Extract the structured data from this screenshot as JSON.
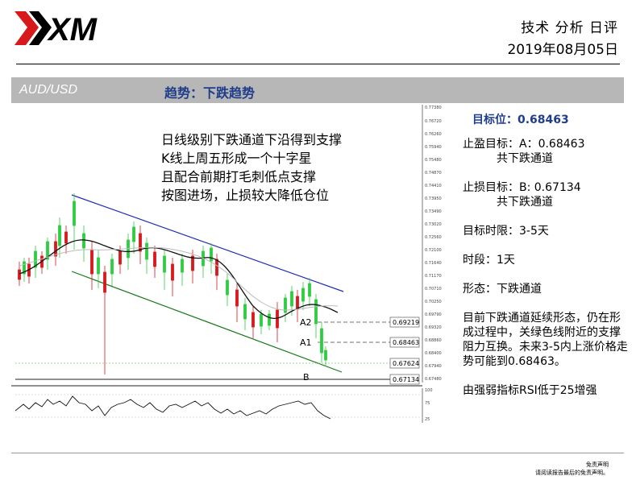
{
  "header": {
    "title": "技术 分析 日评",
    "date": "2019年08月05日"
  },
  "bar": {
    "pair": "AUD/USD",
    "trend": "趋势：下跌趋势"
  },
  "annotation": [
    "日线级别下跌通道下沿得到支撑",
    "K线上周五形成一个十字星",
    "且配合前期打毛刺低点支撑",
    "按图进场，止损较大降低仓位"
  ],
  "chart_labels": {
    "a2": "A2",
    "a1": "A1",
    "b": "B",
    "price_a2": "0.69219",
    "price_a1": "0.68463",
    "price_cur": "0.67624",
    "price_b": "0.67134"
  },
  "side": {
    "target": "目标位：0.68463",
    "tp_line1": "止盈目标：A：0.68463",
    "tp_line2": "共下跌通道",
    "sl_line1": "止损目标：B: 0.67134",
    "sl_line2": "共下跌通道",
    "period": "目标时限：3-5天",
    "timeframe": "时段：1天",
    "pattern": "形态：下跌通道",
    "desc": "目前下跌通道延续形态，仍在形成过程中，关绿色线附近的支撑阻力互换。未来3-5内上涨价格走势可能到0.68463。",
    "rsi": "由强弱指标RSI低于25增强"
  },
  "disclaimer": {
    "line1": "免责声明",
    "line2": "请阅读报告最后的免责声明。"
  },
  "colors": {
    "brand_red": "#d7191c",
    "title_blue": "#1f3d8a",
    "bar_grey": "#b7b7b7",
    "bull": "#2ecc40",
    "bear": "#d7191c",
    "channel_top": "#1f2bb3",
    "channel_bottom": "#1a7a1a"
  }
}
